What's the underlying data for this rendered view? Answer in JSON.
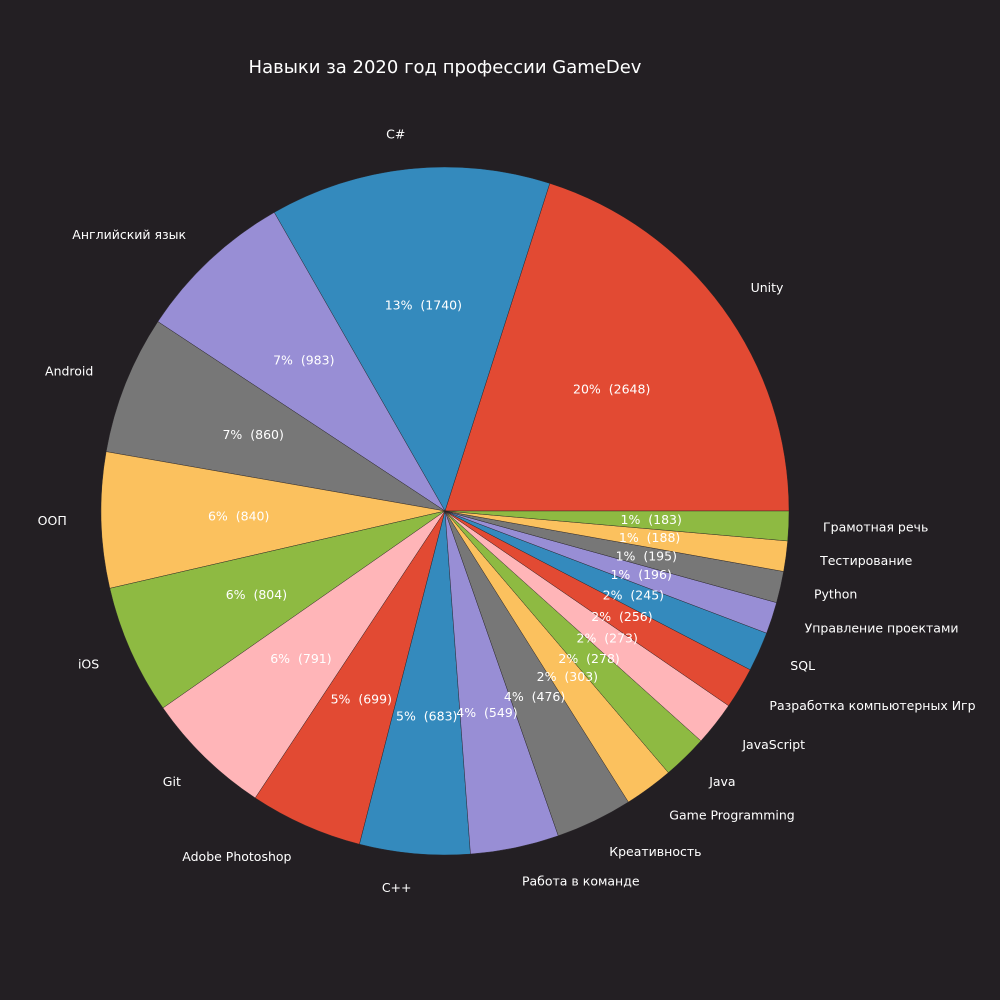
{
  "chart_data": {
    "type": "pie",
    "title": "Навыки за 2020 год профессии GameDev",
    "categories": [
      "Unity",
      "C#",
      "Английский язык",
      "Android",
      "ООП",
      "iOS",
      "Git",
      "Adobe Photoshop",
      "C++",
      "Работа в команде",
      "Креативность",
      "Game Programming",
      "Java",
      "JavaScript",
      "Разработка компьютерных Игр",
      "SQL",
      "Управление проектами",
      "Python",
      "Тестирование",
      "Грамотная речь"
    ],
    "values": [
      2648,
      1740,
      983,
      860,
      840,
      804,
      791,
      699,
      683,
      549,
      476,
      303,
      278,
      273,
      256,
      245,
      196,
      195,
      188,
      183
    ],
    "labels": [
      "20%  (2648)",
      "13%  (1740)",
      "7%  (983)",
      "7%  (860)",
      "6%  (840)",
      "6%  (804)",
      "6%  (791)",
      "5%  (699)",
      "5%  (683)",
      "4%  (549)",
      "4%  (476)",
      "2%  (303)",
      "2%  (278)",
      "2%  (273)",
      "2%  (256)",
      "2%  (245)",
      "1%  (196)",
      "1%  (195)",
      "1%  (188)",
      "1%  (183)"
    ],
    "colors": [
      "#e24a33",
      "#348abd",
      "#988ed5",
      "#777777",
      "#fbc15e",
      "#8eba42",
      "#ffb5b8"
    ],
    "start_angle": 0,
    "direction": "counterclockwise",
    "background": "#231f23"
  }
}
